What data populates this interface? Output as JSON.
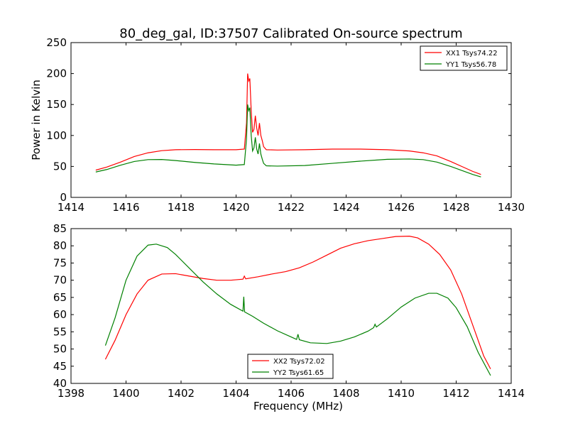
{
  "title": "80_deg_gal, ID:37507 Calibrated On-source spectrum",
  "colors": {
    "red": "#ff0000",
    "green": "#008000",
    "frame": "#000000"
  },
  "chart_data": [
    {
      "type": "line",
      "ylabel": "Power in Kelvin",
      "xlabel": "",
      "xlim": [
        1414,
        1430
      ],
      "ylim": [
        0,
        250
      ],
      "xticks": [
        1414,
        1416,
        1418,
        1420,
        1422,
        1424,
        1426,
        1428,
        1430
      ],
      "yticks": [
        0,
        50,
        100,
        150,
        200,
        250
      ],
      "legend_position": "top-right",
      "series": [
        {
          "name": "XX1 Tsys74.22",
          "color": "#ff0000",
          "points": [
            [
              1414.9,
              44
            ],
            [
              1415.3,
              49
            ],
            [
              1415.8,
              57
            ],
            [
              1416.3,
              66
            ],
            [
              1416.8,
              72
            ],
            [
              1417.3,
              75.5
            ],
            [
              1417.8,
              77
            ],
            [
              1418.5,
              77.3
            ],
            [
              1419.2,
              77
            ],
            [
              1420.0,
              77
            ],
            [
              1420.3,
              78
            ],
            [
              1420.38,
              120
            ],
            [
              1420.42,
              200
            ],
            [
              1420.46,
              188
            ],
            [
              1420.5,
              192
            ],
            [
              1420.55,
              140
            ],
            [
              1420.6,
              105
            ],
            [
              1420.65,
              110
            ],
            [
              1420.7,
              132
            ],
            [
              1420.75,
              112
            ],
            [
              1420.8,
              100
            ],
            [
              1420.85,
              120
            ],
            [
              1420.9,
              100
            ],
            [
              1420.95,
              92
            ],
            [
              1421.0,
              82
            ],
            [
              1421.1,
              77
            ],
            [
              1421.5,
              76.5
            ],
            [
              1422.5,
              77
            ],
            [
              1423.5,
              78
            ],
            [
              1424.5,
              78
            ],
            [
              1425.5,
              77
            ],
            [
              1426.3,
              75
            ],
            [
              1426.8,
              72
            ],
            [
              1427.3,
              67
            ],
            [
              1427.8,
              58
            ],
            [
              1428.3,
              48
            ],
            [
              1428.6,
              42
            ],
            [
              1428.9,
              37
            ]
          ]
        },
        {
          "name": "YY1 Tsys56.78",
          "color": "#008000",
          "points": [
            [
              1414.9,
              41
            ],
            [
              1415.3,
              45
            ],
            [
              1415.8,
              52
            ],
            [
              1416.3,
              58
            ],
            [
              1416.8,
              61
            ],
            [
              1417.3,
              61.2
            ],
            [
              1417.8,
              59.5
            ],
            [
              1418.5,
              56.5
            ],
            [
              1419.2,
              54
            ],
            [
              1420.0,
              52
            ],
            [
              1420.3,
              53
            ],
            [
              1420.38,
              95
            ],
            [
              1420.42,
              150
            ],
            [
              1420.46,
              140
            ],
            [
              1420.5,
              145
            ],
            [
              1420.55,
              100
            ],
            [
              1420.6,
              75
            ],
            [
              1420.65,
              80
            ],
            [
              1420.7,
              97
            ],
            [
              1420.75,
              78
            ],
            [
              1420.8,
              70
            ],
            [
              1420.85,
              87
            ],
            [
              1420.9,
              70
            ],
            [
              1420.95,
              62
            ],
            [
              1421.0,
              55
            ],
            [
              1421.1,
              51
            ],
            [
              1421.5,
              50.5
            ],
            [
              1422.5,
              51.5
            ],
            [
              1423.5,
              55
            ],
            [
              1424.5,
              58.5
            ],
            [
              1425.5,
              61.5
            ],
            [
              1426.3,
              62
            ],
            [
              1426.8,
              61
            ],
            [
              1427.3,
              57
            ],
            [
              1427.8,
              50
            ],
            [
              1428.3,
              42
            ],
            [
              1428.6,
              37
            ],
            [
              1428.9,
              33
            ]
          ]
        }
      ]
    },
    {
      "type": "line",
      "xlabel": "Frequency (MHz)",
      "ylabel": "",
      "xlim": [
        1398,
        1414
      ],
      "ylim": [
        40,
        85
      ],
      "xticks": [
        1398,
        1400,
        1402,
        1404,
        1406,
        1408,
        1410,
        1412,
        1414
      ],
      "yticks": [
        40,
        45,
        50,
        55,
        60,
        65,
        70,
        75,
        80,
        85
      ],
      "legend_position": "bottom-center",
      "series": [
        {
          "name": "XX2 Tsys72.02",
          "color": "#ff0000",
          "points": [
            [
              1399.25,
              47
            ],
            [
              1399.6,
              52.5
            ],
            [
              1400.0,
              60
            ],
            [
              1400.4,
              66
            ],
            [
              1400.8,
              70
            ],
            [
              1401.3,
              71.8
            ],
            [
              1401.8,
              71.9
            ],
            [
              1402.3,
              71.2
            ],
            [
              1402.8,
              70.5
            ],
            [
              1403.3,
              70
            ],
            [
              1403.8,
              70
            ],
            [
              1404.25,
              70.3
            ],
            [
              1404.3,
              71.2
            ],
            [
              1404.35,
              70.4
            ],
            [
              1404.8,
              71
            ],
            [
              1405.3,
              71.8
            ],
            [
              1405.8,
              72.5
            ],
            [
              1406.3,
              73.6
            ],
            [
              1406.8,
              75.3
            ],
            [
              1407.3,
              77.3
            ],
            [
              1407.8,
              79.3
            ],
            [
              1408.3,
              80.6
            ],
            [
              1408.8,
              81.5
            ],
            [
              1409.3,
              82.1
            ],
            [
              1409.8,
              82.7
            ],
            [
              1410.3,
              82.8
            ],
            [
              1410.6,
              82.3
            ],
            [
              1411.0,
              80.5
            ],
            [
              1411.4,
              77.5
            ],
            [
              1411.8,
              73
            ],
            [
              1412.2,
              66
            ],
            [
              1412.6,
              57
            ],
            [
              1413.0,
              48
            ],
            [
              1413.25,
              44.2
            ]
          ]
        },
        {
          "name": "YY2 Tsys61.65",
          "color": "#008000",
          "points": [
            [
              1399.25,
              51
            ],
            [
              1399.6,
              59
            ],
            [
              1400.0,
              70
            ],
            [
              1400.4,
              77
            ],
            [
              1400.8,
              80.2
            ],
            [
              1401.1,
              80.5
            ],
            [
              1401.5,
              79.5
            ],
            [
              1401.8,
              77.5
            ],
            [
              1402.3,
              73.5
            ],
            [
              1402.8,
              69.5
            ],
            [
              1403.3,
              66
            ],
            [
              1403.8,
              63
            ],
            [
              1404.25,
              61
            ],
            [
              1404.28,
              65.2
            ],
            [
              1404.31,
              60.8
            ],
            [
              1404.6,
              59.5
            ],
            [
              1405.0,
              57.5
            ],
            [
              1405.5,
              55.3
            ],
            [
              1406.0,
              53.5
            ],
            [
              1406.2,
              52.8
            ],
            [
              1406.25,
              54.3
            ],
            [
              1406.3,
              52.7
            ],
            [
              1406.7,
              51.8
            ],
            [
              1407.3,
              51.6
            ],
            [
              1407.8,
              52.3
            ],
            [
              1408.3,
              53.5
            ],
            [
              1408.8,
              55.2
            ],
            [
              1409.0,
              56.2
            ],
            [
              1409.05,
              57.2
            ],
            [
              1409.1,
              56.4
            ],
            [
              1409.5,
              58.8
            ],
            [
              1410.0,
              62.2
            ],
            [
              1410.5,
              64.8
            ],
            [
              1411.0,
              66.2
            ],
            [
              1411.3,
              66.2
            ],
            [
              1411.7,
              64.8
            ],
            [
              1412.0,
              62
            ],
            [
              1412.4,
              56.5
            ],
            [
              1412.8,
              49
            ],
            [
              1413.25,
              42.3
            ]
          ]
        }
      ]
    }
  ]
}
